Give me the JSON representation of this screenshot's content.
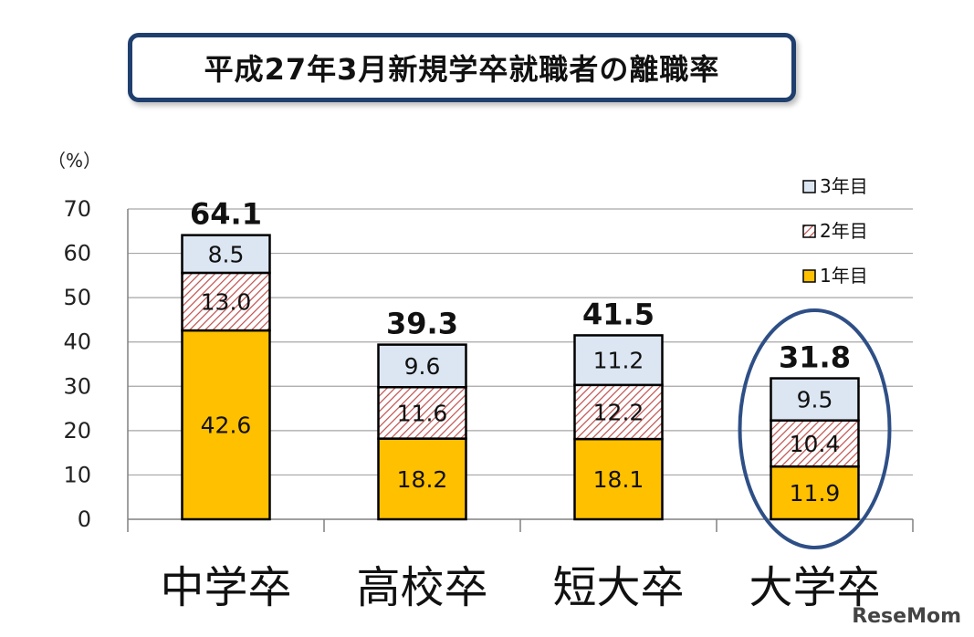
{
  "title": "平成27年3月新規学卒就職者の離職率",
  "watermark": "ReseMom",
  "chart_data": {
    "type": "bar",
    "stacked": true,
    "title": "平成27年3月新規学卒就職者の離職率",
    "ylabel": "（%）",
    "ylim": [
      0,
      70
    ],
    "yticks": [
      0,
      10,
      20,
      30,
      40,
      50,
      60,
      70
    ],
    "grid": true,
    "legend_position": "top-right",
    "categories": [
      "中学卒",
      "高校卒",
      "短大卒",
      "大学卒"
    ],
    "totals": [
      "64.1",
      "39.3",
      "41.5",
      "31.8"
    ],
    "series": [
      {
        "name": "1年目",
        "values": [
          42.6,
          18.2,
          18.1,
          11.9
        ],
        "labels": [
          "42.6",
          "18.2",
          "18.1",
          "11.9"
        ],
        "color": "#ffc000",
        "pattern": "solid"
      },
      {
        "name": "2年目",
        "values": [
          13.0,
          11.6,
          12.2,
          10.4
        ],
        "labels": [
          "13.0",
          "11.6",
          "12.2",
          "10.4"
        ],
        "color": "#c0504d",
        "pattern": "hatched"
      },
      {
        "name": "3年目",
        "values": [
          8.5,
          9.6,
          11.2,
          9.5
        ],
        "labels": [
          "8.5",
          "9.6",
          "11.2",
          "9.5"
        ],
        "color": "#dce6f2",
        "pattern": "solid"
      }
    ],
    "highlight_category": "大学卒",
    "highlight_color": "#2e4f86"
  }
}
